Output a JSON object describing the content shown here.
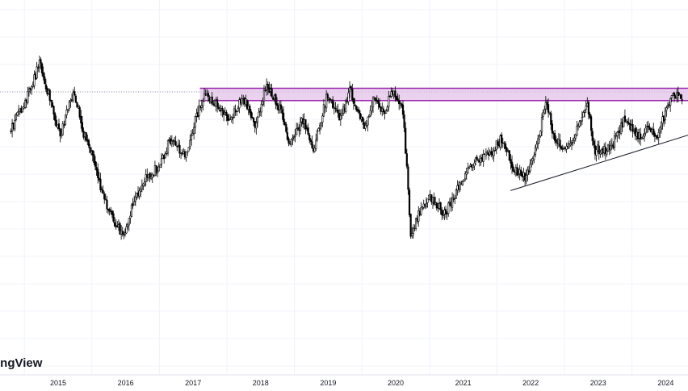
{
  "chart_data": {
    "type": "candlestick",
    "title": "",
    "xlabel": "",
    "ylabel": "",
    "x_tick_labels": [
      "2015",
      "2016",
      "2017",
      "2018",
      "2019",
      "2020",
      "2021",
      "2022",
      "2023",
      "2024"
    ],
    "x_range": [
      2014.3,
      2024.4
    ],
    "y_range": [
      0,
      100
    ],
    "grid": true,
    "up_color": "#ffffff",
    "down_color": "#000000",
    "outline_color": "#000000",
    "resistance_zone": {
      "low": 74.4,
      "high": 78.5,
      "start": 2017.1,
      "end": 2024.4,
      "color": "#e1bee7",
      "border": "#9c27b0"
    },
    "dotted_level": 77.3,
    "support_trendline": [
      [
        2021.7,
        44.2
      ],
      [
        2024.4,
        63.3
      ]
    ],
    "keypoints": [
      [
        2014.3,
        64.0
      ],
      [
        2014.55,
        75.0
      ],
      [
        2014.75,
        87.0
      ],
      [
        2014.95,
        70.0
      ],
      [
        2015.05,
        62.0
      ],
      [
        2015.25,
        78.0
      ],
      [
        2015.4,
        63.0
      ],
      [
        2015.55,
        54.0
      ],
      [
        2015.7,
        41.0
      ],
      [
        2015.85,
        34.0
      ],
      [
        2016.0,
        28.0
      ],
      [
        2016.1,
        38.0
      ],
      [
        2016.3,
        48.0
      ],
      [
        2016.5,
        52.0
      ],
      [
        2016.7,
        62.0
      ],
      [
        2016.9,
        55.0
      ],
      [
        2017.05,
        68.0
      ],
      [
        2017.2,
        77.0
      ],
      [
        2017.4,
        72.0
      ],
      [
        2017.55,
        67.0
      ],
      [
        2017.75,
        76.0
      ],
      [
        2017.95,
        66.0
      ],
      [
        2018.1,
        79.0
      ],
      [
        2018.3,
        72.0
      ],
      [
        2018.45,
        59.0
      ],
      [
        2018.65,
        68.0
      ],
      [
        2018.8,
        58.0
      ],
      [
        2019.0,
        76.0
      ],
      [
        2019.2,
        68.0
      ],
      [
        2019.35,
        78.0
      ],
      [
        2019.55,
        65.0
      ],
      [
        2019.7,
        76.0
      ],
      [
        2019.85,
        70.0
      ],
      [
        2019.97,
        78.0
      ],
      [
        2020.12,
        73.0
      ],
      [
        2020.18,
        53.0
      ],
      [
        2020.24,
        30.0
      ],
      [
        2020.4,
        38.0
      ],
      [
        2020.55,
        42.0
      ],
      [
        2020.75,
        36.0
      ],
      [
        2020.85,
        41.0
      ],
      [
        2021.0,
        48.0
      ],
      [
        2021.2,
        54.0
      ],
      [
        2021.4,
        56.0
      ],
      [
        2021.6,
        62.0
      ],
      [
        2021.75,
        52.0
      ],
      [
        2021.95,
        48.0
      ],
      [
        2022.1,
        58.0
      ],
      [
        2022.25,
        75.0
      ],
      [
        2022.35,
        63.0
      ],
      [
        2022.55,
        58.0
      ],
      [
        2022.75,
        67.0
      ],
      [
        2022.85,
        75.0
      ],
      [
        2022.95,
        58.0
      ],
      [
        2023.2,
        58.0
      ],
      [
        2023.4,
        68.0
      ],
      [
        2023.6,
        62.0
      ],
      [
        2023.75,
        65.0
      ],
      [
        2023.9,
        63.0
      ],
      [
        2024.05,
        73.0
      ],
      [
        2024.15,
        77.0
      ],
      [
        2024.25,
        75.0
      ]
    ]
  }
}
